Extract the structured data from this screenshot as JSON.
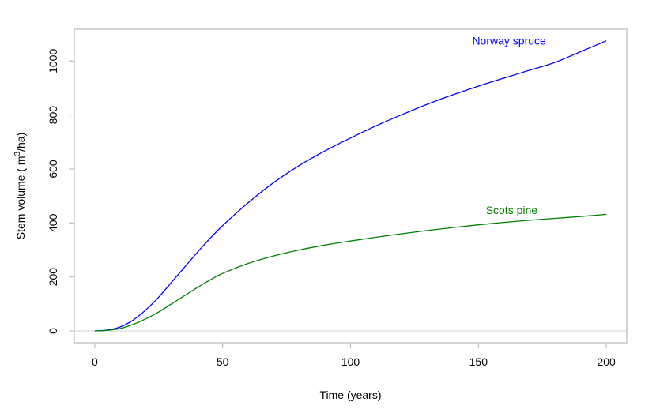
{
  "chart_data": {
    "type": "line",
    "title": "",
    "xlabel": "Time (years)",
    "ylabel_parts": [
      "Stem volume ( m",
      "3",
      "/ha)"
    ],
    "xlim": [
      -8,
      208
    ],
    "ylim": [
      -44,
      1118
    ],
    "xticks": [
      0,
      50,
      100,
      150,
      200
    ],
    "yticks": [
      0,
      200,
      400,
      600,
      800,
      1000
    ],
    "xtick_labels": [
      "0",
      "50",
      "100",
      "150",
      "200"
    ],
    "ytick_labels": [
      "0",
      "200",
      "400",
      "600",
      "800",
      "1000"
    ],
    "grid": false,
    "reference_line": {
      "y": 0,
      "color": "#d3d3d3"
    },
    "frame_color": "#bebebe",
    "series": [
      {
        "name": "Norway spruce",
        "color": "#0000ff",
        "label_at": {
          "x": 162,
          "y": 1075
        },
        "x": [
          0,
          5,
          10,
          15,
          20,
          25,
          30,
          35,
          40,
          45,
          50,
          60,
          70,
          80,
          90,
          100,
          110,
          120,
          130,
          140,
          150,
          160,
          170,
          180,
          190,
          200
        ],
        "y": [
          0,
          3,
          15,
          40,
          78,
          125,
          180,
          235,
          290,
          342,
          390,
          475,
          550,
          613,
          667,
          715,
          760,
          801,
          840,
          875,
          907,
          937,
          966,
          995,
          1035,
          1075
        ]
      },
      {
        "name": "Scots pine",
        "color": "#008000",
        "label_at": {
          "x": 163,
          "y": 448
        },
        "x": [
          0,
          5,
          10,
          15,
          20,
          25,
          30,
          35,
          40,
          45,
          50,
          60,
          70,
          80,
          90,
          100,
          110,
          120,
          130,
          140,
          150,
          160,
          170,
          180,
          190,
          200
        ],
        "y": [
          0,
          2,
          9,
          24,
          45,
          70,
          100,
          130,
          160,
          188,
          213,
          250,
          278,
          300,
          318,
          333,
          347,
          360,
          372,
          383,
          393,
          402,
          410,
          417,
          424,
          432
        ]
      }
    ]
  }
}
